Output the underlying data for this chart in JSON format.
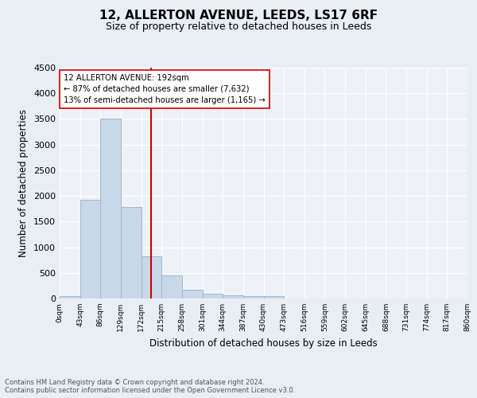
{
  "title1": "12, ALLERTON AVENUE, LEEDS, LS17 6RF",
  "title2": "Size of property relative to detached houses in Leeds",
  "xlabel": "Distribution of detached houses by size in Leeds",
  "ylabel": "Number of detached properties",
  "bar_edges": [
    0,
    43,
    86,
    129,
    172,
    215,
    258,
    301,
    344,
    387,
    430,
    473,
    516,
    559,
    602,
    645,
    688,
    731,
    774,
    817,
    860
  ],
  "bar_heights": [
    50,
    1920,
    3500,
    1780,
    820,
    450,
    170,
    100,
    65,
    50,
    50,
    0,
    0,
    0,
    0,
    0,
    0,
    0,
    0,
    0
  ],
  "bar_color": "#c8d8e8",
  "bar_edge_color": "#a0b8cc",
  "vline_x": 192,
  "vline_color": "#cc0000",
  "annotation_text": "12 ALLERTON AVENUE: 192sqm\n← 87% of detached houses are smaller (7,632)\n13% of semi-detached houses are larger (1,165) →",
  "annotation_box_color": "#ffffff",
  "annotation_box_edge": "#cc0000",
  "ylim": [
    0,
    4500
  ],
  "yticks": [
    0,
    500,
    1000,
    1500,
    2000,
    2500,
    3000,
    3500,
    4000,
    4500
  ],
  "tick_labels": [
    "0sqm",
    "43sqm",
    "86sqm",
    "129sqm",
    "172sqm",
    "215sqm",
    "258sqm",
    "301sqm",
    "344sqm",
    "387sqm",
    "430sqm",
    "473sqm",
    "516sqm",
    "559sqm",
    "602sqm",
    "645sqm",
    "688sqm",
    "731sqm",
    "774sqm",
    "817sqm",
    "860sqm"
  ],
  "footnote": "Contains HM Land Registry data © Crown copyright and database right 2024.\nContains public sector information licensed under the Open Government Licence v3.0.",
  "bg_color": "#e8eef4",
  "plot_bg_color": "#eef2f7"
}
